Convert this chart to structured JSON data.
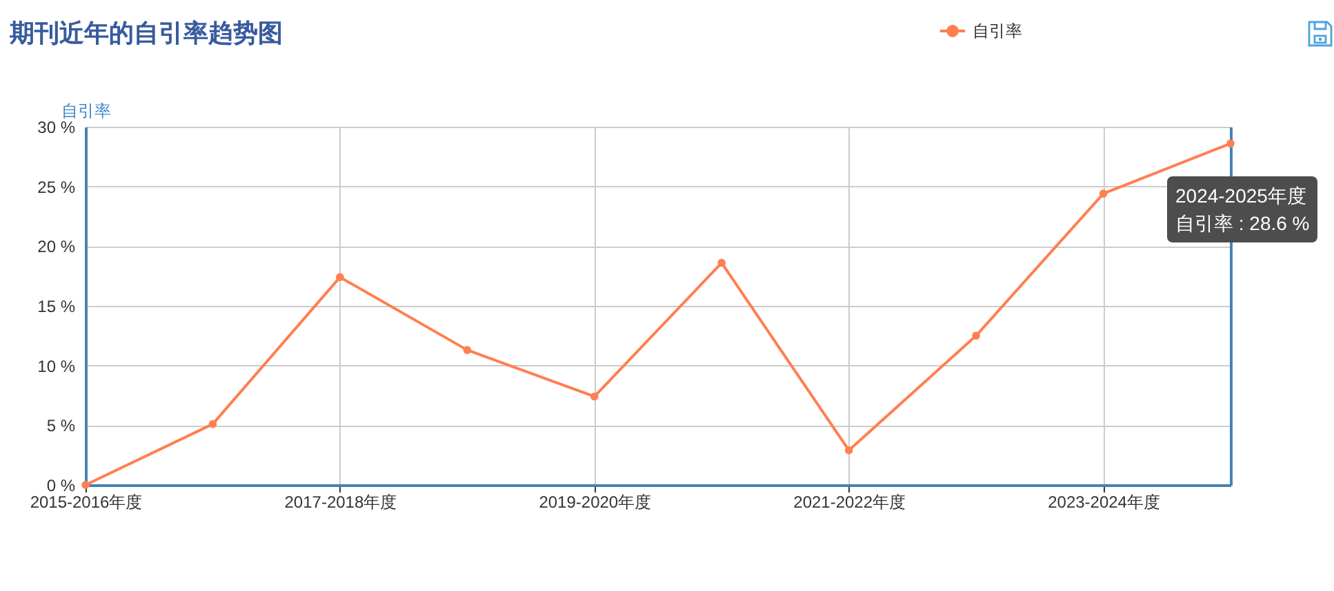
{
  "chart_data": {
    "type": "line",
    "title": "期刊近年的自引率趋势图",
    "ylabel": "自引率",
    "categories": [
      "2015-2016年度",
      null,
      "2017-2018年度",
      null,
      "2019-2020年度",
      null,
      "2021-2022年度",
      null,
      "2023-2024年度",
      null
    ],
    "series": [
      {
        "name": "自引率",
        "color": "#ff7f50",
        "values": [
          0,
          5.1,
          17.4,
          11.3,
          7.4,
          18.6,
          2.9,
          12.5,
          24.4,
          28.6
        ]
      }
    ],
    "ylim": [
      0,
      30
    ],
    "yticks": [
      {
        "value": 0,
        "label": "0 %"
      },
      {
        "value": 5,
        "label": "5 %"
      },
      {
        "value": 10,
        "label": "10 %"
      },
      {
        "value": 15,
        "label": "15 %"
      },
      {
        "value": 20,
        "label": "20 %"
      },
      {
        "value": 25,
        "label": "25 %"
      },
      {
        "value": 30,
        "label": "30 %"
      }
    ],
    "grid": true,
    "legend": "top",
    "marker": "circle",
    "annotations": [
      "2024-2025年度",
      "自引率 : 28.6 %"
    ]
  }
}
